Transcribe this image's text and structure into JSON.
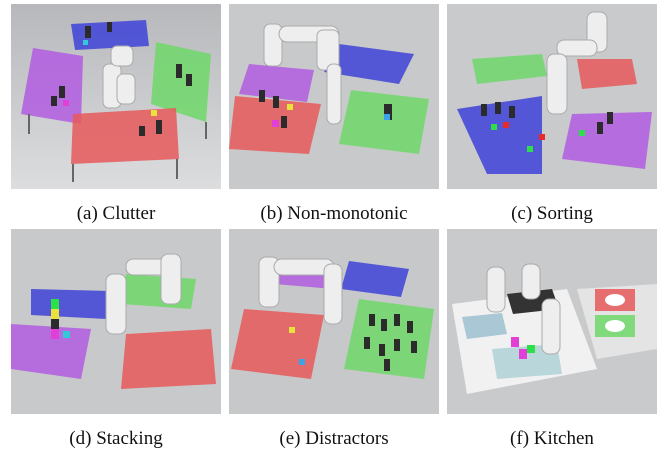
{
  "figure": {
    "panels": [
      {
        "id": "a",
        "caption": "(a) Clutter"
      },
      {
        "id": "b",
        "caption": "(b) Non-monotonic"
      },
      {
        "id": "c",
        "caption": "(c) Sorting"
      },
      {
        "id": "d",
        "caption": "(d) Stacking"
      },
      {
        "id": "e",
        "caption": "(e) Distractors"
      },
      {
        "id": "f",
        "caption": "(f) Kitchen"
      }
    ]
  },
  "colors": {
    "floor": "#cfd0d2",
    "table_red": "#e8595b",
    "table_green": "#6fd86a",
    "table_blue": "#3e43d8",
    "table_purple": "#b25ce0",
    "robot": "#eeeeee",
    "block": "#2b2b2b"
  }
}
